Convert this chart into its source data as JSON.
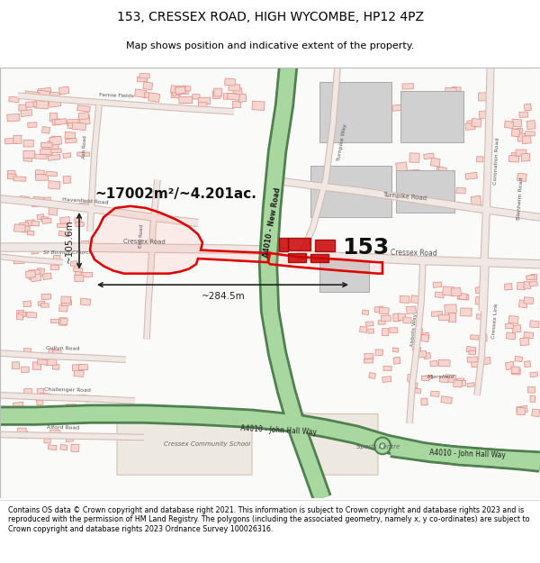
{
  "title_line1": "153, CRESSEX ROAD, HIGH WYCOMBE, HP12 4PZ",
  "title_line2": "Map shows position and indicative extent of the property.",
  "footer_text": "Contains OS data © Crown copyright and database right 2021. This information is subject to Crown copyright and database rights 2023 and is reproduced with the permission of HM Land Registry. The polygons (including the associated geometry, namely x, y co-ordinates) are subject to Crown copyright and database rights 2023 Ordnance Survey 100026316.",
  "area_label": "~17002m²/~4.201ac.",
  "dim_width": "~284.5m",
  "dim_height": "~105.6m",
  "property_number": "153",
  "map_bg": "#ffffff",
  "building_fill_light": "#f5d5d0",
  "building_stroke_light": "#e08080",
  "building_fill_gray": "#d8d8d8",
  "building_stroke_gray": "#aaaaaa",
  "road_fill": "#e8d0c8",
  "road_stroke": "#c8a8a0",
  "green_road_fill": "#a8d8a0",
  "green_road_stroke": "#60a060",
  "green_road_dark": "#508050",
  "property_stroke": "#dd0000",
  "property_fill": "#ffaaaa",
  "property_alpha": 0.15,
  "dim_color": "#222222",
  "label_color": "#555555",
  "road_label_color": "#444444",
  "fig_width": 6.0,
  "fig_height": 6.25,
  "title_fontsize": 10,
  "subtitle_fontsize": 8,
  "footer_fontsize": 5.8,
  "area_fontsize": 11,
  "number_fontsize": 18,
  "dim_fontsize": 7.5
}
